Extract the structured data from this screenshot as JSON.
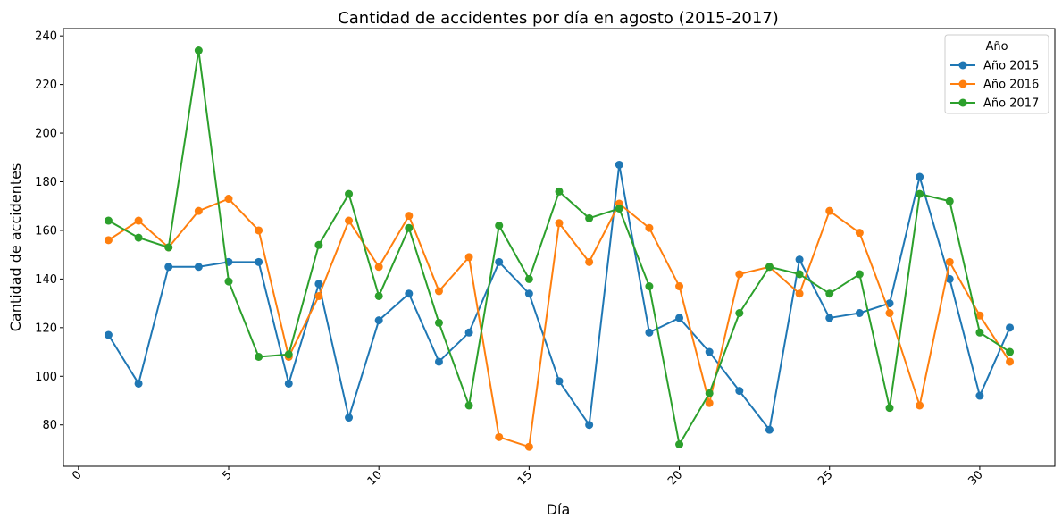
{
  "chart_data": {
    "type": "line",
    "title": "Cantidad de accidentes por día en agosto (2015-2017)",
    "xlabel": "Día",
    "ylabel": "Cantidad de accidentes",
    "xlim": [
      -0.5,
      32.5
    ],
    "ylim": [
      63,
      243
    ],
    "xticks": [
      0,
      5,
      10,
      15,
      20,
      25,
      30
    ],
    "yticks": [
      80,
      100,
      120,
      140,
      160,
      180,
      200,
      220,
      240
    ],
    "grid": false,
    "legend": {
      "title": "Año",
      "placement": "top-right"
    },
    "x": [
      1,
      2,
      3,
      4,
      5,
      6,
      7,
      8,
      9,
      10,
      11,
      12,
      13,
      14,
      15,
      16,
      17,
      18,
      19,
      20,
      21,
      22,
      23,
      24,
      25,
      26,
      27,
      28,
      29,
      30,
      31
    ],
    "series": [
      {
        "name": "Año 2015",
        "color": "#1f77b4",
        "values": [
          117,
          97,
          145,
          145,
          147,
          147,
          97,
          138,
          83,
          123,
          134,
          106,
          118,
          147,
          134,
          98,
          80,
          187,
          118,
          124,
          110,
          94,
          78,
          148,
          124,
          126,
          130,
          182,
          140,
          92,
          120
        ]
      },
      {
        "name": "Año 2016",
        "color": "#ff7f0e",
        "values": [
          156,
          164,
          153,
          168,
          173,
          160,
          108,
          133,
          164,
          145,
          166,
          135,
          149,
          75,
          71,
          163,
          147,
          171,
          161,
          137,
          89,
          142,
          145,
          134,
          168,
          159,
          126,
          88,
          147,
          125,
          106
        ]
      },
      {
        "name": "Año 2017",
        "color": "#2ca02c",
        "values": [
          164,
          157,
          153,
          234,
          139,
          108,
          109,
          154,
          175,
          133,
          161,
          122,
          88,
          162,
          140,
          176,
          165,
          169,
          137,
          72,
          93,
          126,
          145,
          142,
          134,
          142,
          87,
          175,
          172,
          118,
          110
        ]
      }
    ]
  }
}
